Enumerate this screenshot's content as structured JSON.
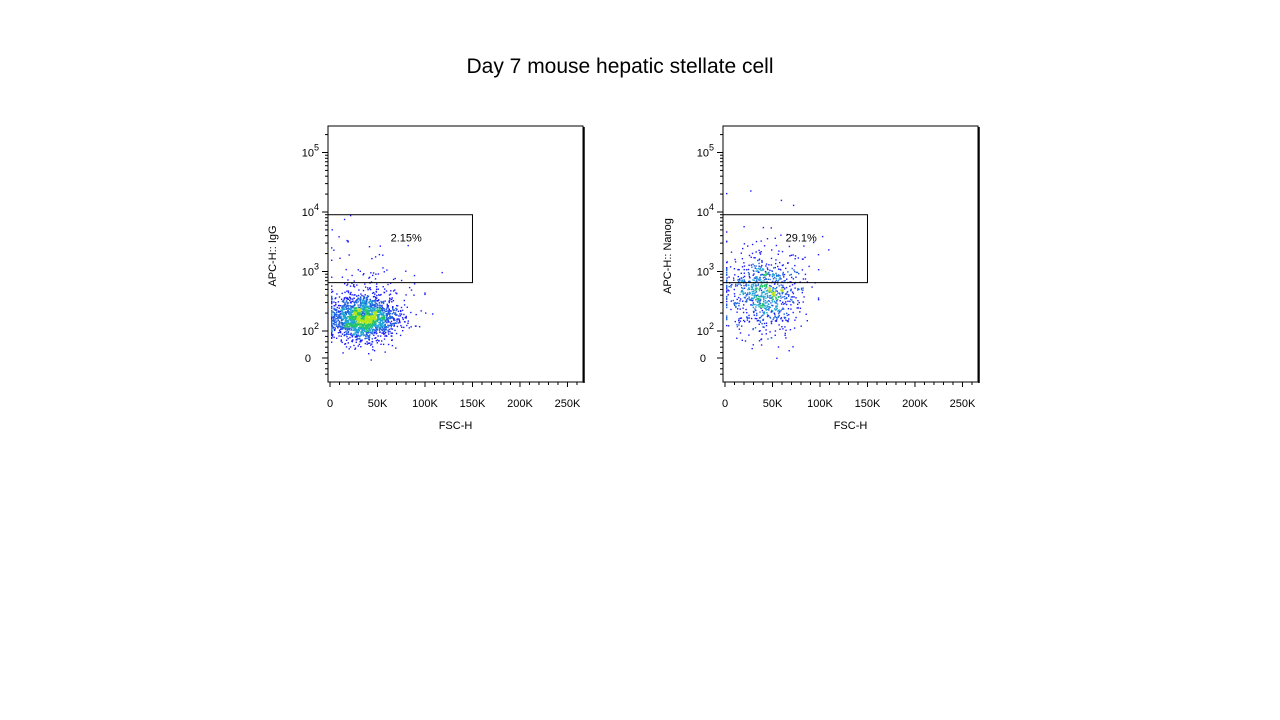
{
  "slide": {
    "title": "Day 7 mouse hepatic stellate cell"
  },
  "chart_data": [
    {
      "type": "scatter",
      "title": "",
      "xlabel": "FSC-H",
      "ylabel": "APC-H:: IgG",
      "x_ticks": [
        "0",
        "50K",
        "100K",
        "150K",
        "200K",
        "250K"
      ],
      "y_ticks": [
        {
          "base": "0",
          "exp": ""
        },
        {
          "base": "10",
          "exp": "2"
        },
        {
          "base": "10",
          "exp": "3"
        },
        {
          "base": "10",
          "exp": "4"
        },
        {
          "base": "10",
          "exp": "5"
        }
      ],
      "x_scale": "linear",
      "y_scale": "biexponential",
      "xlim": [
        0,
        262144
      ],
      "gate": {
        "label": "2.15%",
        "x_range": [
          0,
          150000
        ],
        "y_range": [
          650,
          9000
        ]
      },
      "population": {
        "center_fsc": 35000,
        "center_apc": 170,
        "n_events": 2000,
        "density_coloring": true
      }
    },
    {
      "type": "scatter",
      "title": "",
      "xlabel": "FSC-H",
      "ylabel": "APC-H:: Nanog",
      "x_ticks": [
        "0",
        "50K",
        "100K",
        "150K",
        "200K",
        "250K"
      ],
      "y_ticks": [
        {
          "base": "0",
          "exp": ""
        },
        {
          "base": "10",
          "exp": "2"
        },
        {
          "base": "10",
          "exp": "3"
        },
        {
          "base": "10",
          "exp": "4"
        },
        {
          "base": "10",
          "exp": "5"
        }
      ],
      "x_scale": "linear",
      "y_scale": "biexponential",
      "xlim": [
        0,
        262144
      ],
      "gate": {
        "label": "29.1%",
        "x_range": [
          0,
          150000
        ],
        "y_range": [
          650,
          9000
        ]
      },
      "population": {
        "center_fsc": 40000,
        "center_apc": 420,
        "n_events": 900,
        "density_coloring": true
      }
    }
  ]
}
